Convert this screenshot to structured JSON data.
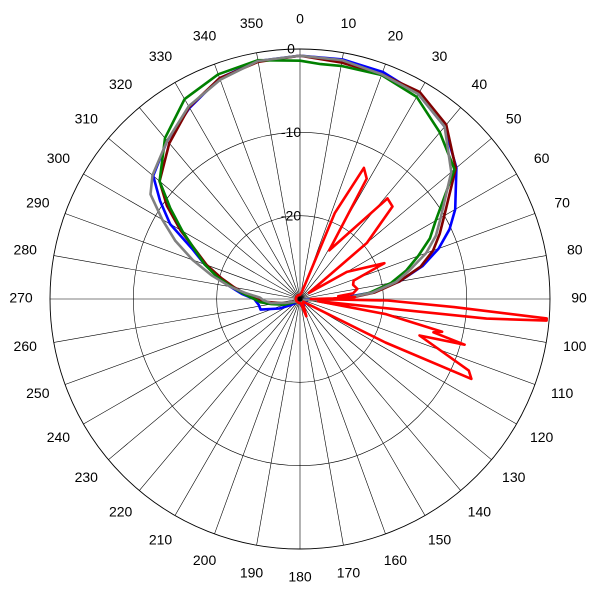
{
  "chart_data": {
    "type": "polar-line",
    "title": "",
    "angular_axis": {
      "unit": "degrees",
      "direction": "clockwise",
      "zero_position": "top",
      "tick_labels": [
        "0",
        "10",
        "20",
        "30",
        "40",
        "50",
        "60",
        "70",
        "80",
        "90",
        "100",
        "110",
        "120",
        "130",
        "140",
        "150",
        "160",
        "170",
        "180",
        "190",
        "200",
        "210",
        "220",
        "230",
        "240",
        "250",
        "260",
        "270",
        "280",
        "290",
        "300",
        "310",
        "320",
        "330",
        "340",
        "350"
      ]
    },
    "radial_axis": {
      "range": [
        -30,
        0
      ],
      "ring_values": [
        -30,
        -20,
        -10,
        0
      ],
      "ring_labels": [
        "0",
        "-10",
        "-20"
      ]
    },
    "grid": true,
    "legend": "none",
    "series": [
      {
        "color": "#0000ff",
        "points": [
          [
            0,
            -0.8
          ],
          [
            10,
            -0.8
          ],
          [
            20,
            -1.0
          ],
          [
            30,
            -1.6
          ],
          [
            40,
            -3.0
          ],
          [
            50,
            -5.5
          ],
          [
            60,
            -8.5
          ],
          [
            65,
            -10.2
          ],
          [
            70,
            -12.3
          ],
          [
            75,
            -14.8
          ],
          [
            80,
            -17.9
          ],
          [
            85,
            -21.6
          ],
          [
            90,
            -25.7
          ],
          [
            95,
            -29.5
          ],
          [
            100,
            -29.5
          ],
          [
            110,
            -29.2
          ],
          [
            120,
            -29.2
          ],
          [
            140,
            -29.2
          ],
          [
            160,
            -28.8
          ],
          [
            180,
            -29.5
          ],
          [
            200,
            -29.5
          ],
          [
            220,
            -29.5
          ],
          [
            235,
            -28.8
          ],
          [
            245,
            -27.3
          ],
          [
            255,
            -25.1
          ],
          [
            262,
            -25.0
          ],
          [
            270,
            -24.5
          ],
          [
            275,
            -23.0
          ],
          [
            280,
            -21.5
          ],
          [
            285,
            -19.8
          ],
          [
            290,
            -17.8
          ],
          [
            295,
            -15.7
          ],
          [
            300,
            -12.0
          ],
          [
            305,
            -9.5
          ],
          [
            310,
            -7.0
          ],
          [
            320,
            -5.2
          ],
          [
            330,
            -3.5
          ],
          [
            340,
            -1.8
          ],
          [
            350,
            -1.0
          ]
        ]
      },
      {
        "color": "#800000",
        "points": [
          [
            0,
            -0.8
          ],
          [
            10,
            -1.2
          ],
          [
            20,
            -1.3
          ],
          [
            30,
            -1.3
          ],
          [
            40,
            -2.7
          ],
          [
            50,
            -5.6
          ],
          [
            60,
            -10.0
          ],
          [
            65,
            -11.5
          ],
          [
            70,
            -13.0
          ],
          [
            75,
            -15.0
          ],
          [
            80,
            -17.9
          ],
          [
            85,
            -21.0
          ],
          [
            90,
            -24.6
          ],
          [
            95,
            -28.5
          ],
          [
            100,
            -29.5
          ],
          [
            120,
            -29.5
          ],
          [
            160,
            -29.5
          ],
          [
            200,
            -29.5
          ],
          [
            240,
            -29.3
          ],
          [
            255,
            -28.0
          ],
          [
            265,
            -26.0
          ],
          [
            270,
            -24.7
          ],
          [
            275,
            -23.5
          ],
          [
            280,
            -22.0
          ],
          [
            285,
            -20.2
          ],
          [
            290,
            -18.1
          ],
          [
            300,
            -13.4
          ],
          [
            305,
            -10.5
          ],
          [
            310,
            -8.0
          ],
          [
            320,
            -5.6
          ],
          [
            330,
            -3.4
          ],
          [
            340,
            -1.8
          ],
          [
            350,
            -1.1
          ]
        ]
      },
      {
        "color": "#008000",
        "points": [
          [
            0,
            -1.4
          ],
          [
            5,
            -1.7
          ],
          [
            10,
            -1.6
          ],
          [
            20,
            -1.4
          ],
          [
            30,
            -2.0
          ],
          [
            40,
            -3.9
          ],
          [
            50,
            -5.8
          ],
          [
            60,
            -11.2
          ],
          [
            65,
            -12.8
          ],
          [
            70,
            -14.9
          ],
          [
            75,
            -16.8
          ],
          [
            80,
            -18.9
          ],
          [
            85,
            -21.7
          ],
          [
            90,
            -25.0
          ],
          [
            95,
            -28.5
          ],
          [
            100,
            -29.5
          ],
          [
            120,
            -29.5
          ],
          [
            160,
            -29.5
          ],
          [
            200,
            -29.5
          ],
          [
            240,
            -29.3
          ],
          [
            250,
            -28.0
          ],
          [
            260,
            -26.5
          ],
          [
            265,
            -25.3
          ],
          [
            270,
            -24.5
          ],
          [
            275,
            -23.3
          ],
          [
            280,
            -21.7
          ],
          [
            285,
            -19.7
          ],
          [
            290,
            -17.8
          ],
          [
            300,
            -13.7
          ],
          [
            305,
            -11.0
          ],
          [
            310,
            -8.0
          ],
          [
            320,
            -4.8
          ],
          [
            330,
            -2.3
          ],
          [
            340,
            -1.3
          ],
          [
            350,
            -0.9
          ]
        ]
      },
      {
        "color": "#808080",
        "points": [
          [
            0,
            -0.8
          ],
          [
            10,
            -0.9
          ],
          [
            20,
            -1.3
          ],
          [
            30,
            -1.6
          ],
          [
            40,
            -3.0
          ],
          [
            50,
            -6.3
          ],
          [
            60,
            -10.5
          ],
          [
            65,
            -12.0
          ],
          [
            70,
            -13.9
          ],
          [
            75,
            -16.3
          ],
          [
            80,
            -18.3
          ],
          [
            85,
            -21.3
          ],
          [
            90,
            -25.0
          ],
          [
            95,
            -28.5
          ],
          [
            100,
            -29.5
          ],
          [
            120,
            -29.5
          ],
          [
            160,
            -29.5
          ],
          [
            200,
            -29.5
          ],
          [
            240,
            -29.4
          ],
          [
            255,
            -28.2
          ],
          [
            262,
            -26.5
          ],
          [
            268,
            -25.6
          ],
          [
            272,
            -25.2
          ],
          [
            276,
            -23.5
          ],
          [
            280,
            -21.5
          ],
          [
            285,
            -19.0
          ],
          [
            290,
            -16.3
          ],
          [
            295,
            -13.5
          ],
          [
            300,
            -10.9
          ],
          [
            305,
            -8.1
          ],
          [
            310,
            -6.9
          ],
          [
            320,
            -5.2
          ],
          [
            330,
            -3.3
          ],
          [
            340,
            -2.0
          ],
          [
            350,
            -1.0
          ]
        ]
      },
      {
        "color": "#ff0000",
        "points": [
          [
            0,
            -29.5
          ],
          [
            14,
            -29.3
          ],
          [
            22,
            -18.9
          ],
          [
            26,
            -12.5
          ],
          [
            29,
            -13.5
          ],
          [
            31,
            -23.2
          ],
          [
            35,
            -21.2
          ],
          [
            41,
            -14.0
          ],
          [
            45,
            -14.3
          ],
          [
            50,
            -19.5
          ],
          [
            56,
            -28.7
          ],
          [
            60,
            -23.5
          ],
          [
            67,
            -19.0
          ],
          [
            71,
            -23.2
          ],
          [
            75,
            -23.4
          ],
          [
            80,
            -23.0
          ],
          [
            84,
            -23.6
          ],
          [
            86,
            -25.4
          ],
          [
            88,
            -23.4
          ],
          [
            89,
            -26.0
          ],
          [
            90,
            -28.7
          ],
          [
            91,
            -19.5
          ],
          [
            93,
            -11.5
          ],
          [
            94.5,
            -0.3
          ],
          [
            95,
            -0.3
          ],
          [
            96,
            -7.5
          ],
          [
            97,
            -27.8
          ],
          [
            100,
            -19.5
          ],
          [
            103,
            -12.5
          ],
          [
            104,
            -13.5
          ],
          [
            105.5,
            -9.5
          ],
          [
            107,
            -15.0
          ],
          [
            113,
            -8.0
          ],
          [
            115,
            -7.3
          ],
          [
            117,
            -18.5
          ],
          [
            122,
            -28.7
          ],
          [
            130,
            -29.5
          ],
          [
            150,
            -29.2
          ],
          [
            160,
            -27.8
          ],
          [
            170,
            -29.5
          ],
          [
            200,
            -29.5
          ],
          [
            240,
            -29.5
          ],
          [
            270,
            -29.5
          ],
          [
            300,
            -29.5
          ],
          [
            330,
            -29.5
          ],
          [
            360,
            -29.5
          ]
        ]
      }
    ]
  }
}
